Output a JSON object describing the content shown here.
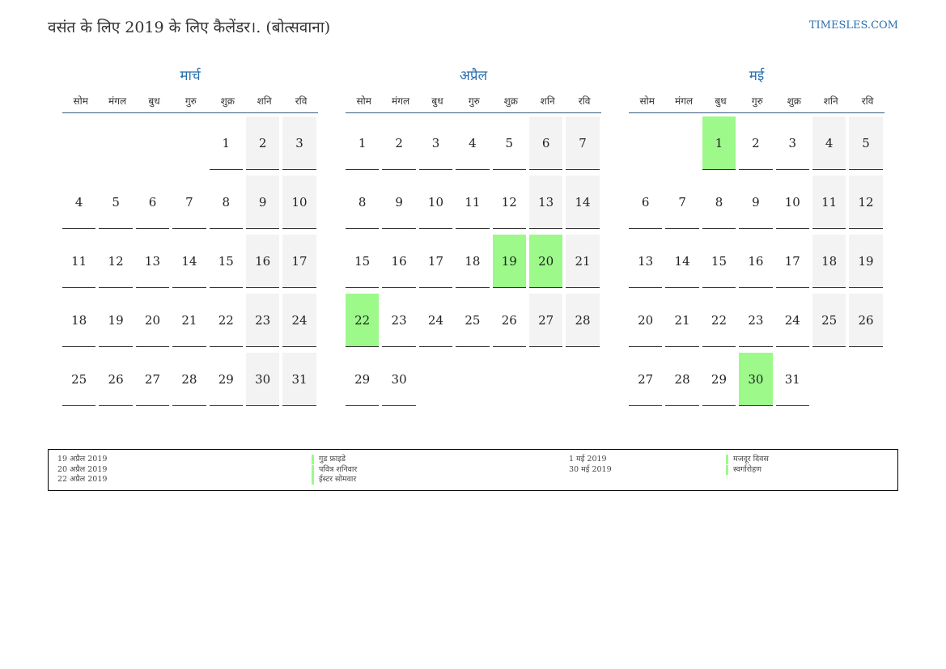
{
  "header": {
    "title": "वसंत के लिए 2019 के लिए कैलेंडर।. (बोत्सवाना)",
    "site": "TIMESLES.COM"
  },
  "colors": {
    "accent": "#2a6fb0",
    "holiday": "#9cf98a",
    "weekend": "#f3f3f3"
  },
  "weekdays": [
    "सोम",
    "मंगल",
    "बुध",
    "गुरु",
    "शुक्र",
    "शनि",
    "रवि"
  ],
  "months": [
    {
      "name": "मार्च",
      "offset": 4,
      "days": 31,
      "holidays": []
    },
    {
      "name": "अप्रैल",
      "offset": 0,
      "days": 30,
      "holidays": [
        19,
        20,
        22
      ]
    },
    {
      "name": "मई",
      "offset": 2,
      "days": 31,
      "holidays": [
        1,
        30
      ]
    }
  ],
  "legend": {
    "left": [
      {
        "date": "19 अप्रैल 2019",
        "name": "गुड फ्राइडे"
      },
      {
        "date": "20 अप्रैल 2019",
        "name": "पवित्र शनिवार"
      },
      {
        "date": "22 अप्रैल 2019",
        "name": "ईस्टर सोमवार"
      }
    ],
    "right": [
      {
        "date": "1 मई 2019",
        "name": "मजदूर दिवस"
      },
      {
        "date": "30 मई 2019",
        "name": "स्वर्गारोहण"
      }
    ]
  }
}
